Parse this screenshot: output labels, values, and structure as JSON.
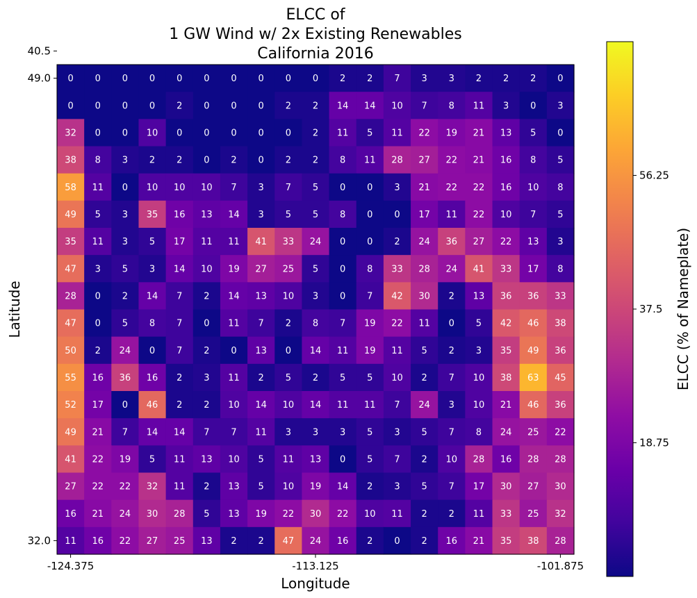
{
  "chart_data": {
    "type": "heatmap",
    "title_lines": [
      "ELCC of",
      "1 GW Wind w/ 2x Existing Renewables",
      "California 2016"
    ],
    "xlabel": "Longitude",
    "ylabel": "Latitude",
    "colorbar_label": "ELCC (% of Nameplate)",
    "colormap": "plasma",
    "value_range": [
      0,
      75
    ],
    "colorbar_ticks": [
      18.75,
      37.5,
      56.25
    ],
    "colorbar_tick_labels": [
      "18.75",
      "37.5",
      "56.25"
    ],
    "x_ticks": [
      -124.375,
      -113.125,
      -101.875
    ],
    "x_tick_labels": [
      "-124.375",
      "-113.125",
      "-101.875"
    ],
    "y_ticks": [
      49.0,
      40.5,
      32.0
    ],
    "y_tick_labels": [
      "49.0",
      "40.5",
      "32.0"
    ],
    "longitudes": [
      -124.375,
      -123.125,
      -121.875,
      -120.625,
      -119.375,
      -118.125,
      -116.875,
      -115.625,
      -114.375,
      -113.125,
      -111.875,
      -110.625,
      -109.375,
      -108.125,
      -106.875,
      -105.625,
      -104.375,
      -103.125,
      -101.875
    ],
    "latitudes": [
      49.0,
      48.0,
      47.0,
      46.0,
      45.0,
      44.0,
      43.0,
      42.0,
      41.0,
      40.0,
      39.0,
      38.0,
      37.0,
      36.0,
      35.0,
      34.0,
      33.0,
      32.0
    ],
    "values": [
      [
        0,
        0,
        0,
        0,
        0,
        0,
        0,
        0,
        0,
        0,
        2,
        2,
        7,
        3,
        3,
        2,
        2,
        2,
        0
      ],
      [
        0,
        0,
        0,
        0,
        2,
        0,
        0,
        0,
        2,
        2,
        14,
        14,
        10,
        7,
        8,
        11,
        3,
        0,
        3
      ],
      [
        32,
        0,
        0,
        10,
        0,
        0,
        0,
        0,
        0,
        2,
        11,
        5,
        11,
        22,
        19,
        21,
        13,
        5,
        0
      ],
      [
        38,
        8,
        3,
        2,
        2,
        0,
        2,
        0,
        2,
        2,
        8,
        11,
        28,
        27,
        22,
        21,
        16,
        8,
        5
      ],
      [
        58,
        11,
        0,
        10,
        10,
        10,
        7,
        3,
        7,
        5,
        0,
        0,
        3,
        21,
        22,
        22,
        16,
        10,
        8
      ],
      [
        49,
        5,
        3,
        35,
        16,
        13,
        14,
        3,
        5,
        5,
        8,
        0,
        0,
        17,
        11,
        22,
        10,
        7,
        5
      ],
      [
        35,
        11,
        3,
        5,
        17,
        11,
        11,
        41,
        33,
        24,
        0,
        0,
        2,
        24,
        36,
        27,
        22,
        13,
        3
      ],
      [
        47,
        3,
        5,
        3,
        14,
        10,
        19,
        27,
        25,
        5,
        0,
        8,
        33,
        28,
        24,
        41,
        33,
        17,
        8
      ],
      [
        28,
        0,
        2,
        14,
        7,
        2,
        14,
        13,
        10,
        3,
        0,
        7,
        42,
        30,
        2,
        13,
        36,
        36,
        33
      ],
      [
        47,
        0,
        5,
        8,
        7,
        0,
        11,
        7,
        2,
        8,
        7,
        19,
        22,
        11,
        0,
        5,
        42,
        46,
        38
      ],
      [
        50,
        2,
        24,
        0,
        7,
        2,
        0,
        13,
        0,
        14,
        11,
        19,
        11,
        5,
        2,
        3,
        35,
        49,
        36
      ],
      [
        55,
        16,
        36,
        16,
        2,
        3,
        11,
        2,
        5,
        2,
        5,
        5,
        10,
        2,
        7,
        10,
        38,
        63,
        45
      ],
      [
        52,
        17,
        0,
        46,
        2,
        2,
        10,
        14,
        10,
        14,
        11,
        11,
        7,
        24,
        3,
        10,
        21,
        46,
        36
      ],
      [
        49,
        21,
        7,
        14,
        14,
        7,
        7,
        11,
        3,
        3,
        3,
        5,
        3,
        5,
        7,
        8,
        24,
        25,
        22
      ],
      [
        41,
        22,
        19,
        5,
        11,
        13,
        10,
        5,
        11,
        13,
        0,
        5,
        7,
        2,
        10,
        28,
        16,
        28,
        28
      ],
      [
        27,
        22,
        22,
        32,
        11,
        2,
        13,
        5,
        10,
        19,
        14,
        2,
        3,
        5,
        7,
        17,
        30,
        27,
        30
      ],
      [
        16,
        21,
        24,
        30,
        28,
        5,
        13,
        19,
        22,
        30,
        22,
        10,
        11,
        2,
        2,
        11,
        33,
        25,
        32
      ],
      [
        11,
        16,
        22,
        27,
        25,
        13,
        2,
        2,
        47,
        24,
        16,
        2,
        0,
        2,
        16,
        21,
        35,
        38,
        28
      ]
    ]
  }
}
